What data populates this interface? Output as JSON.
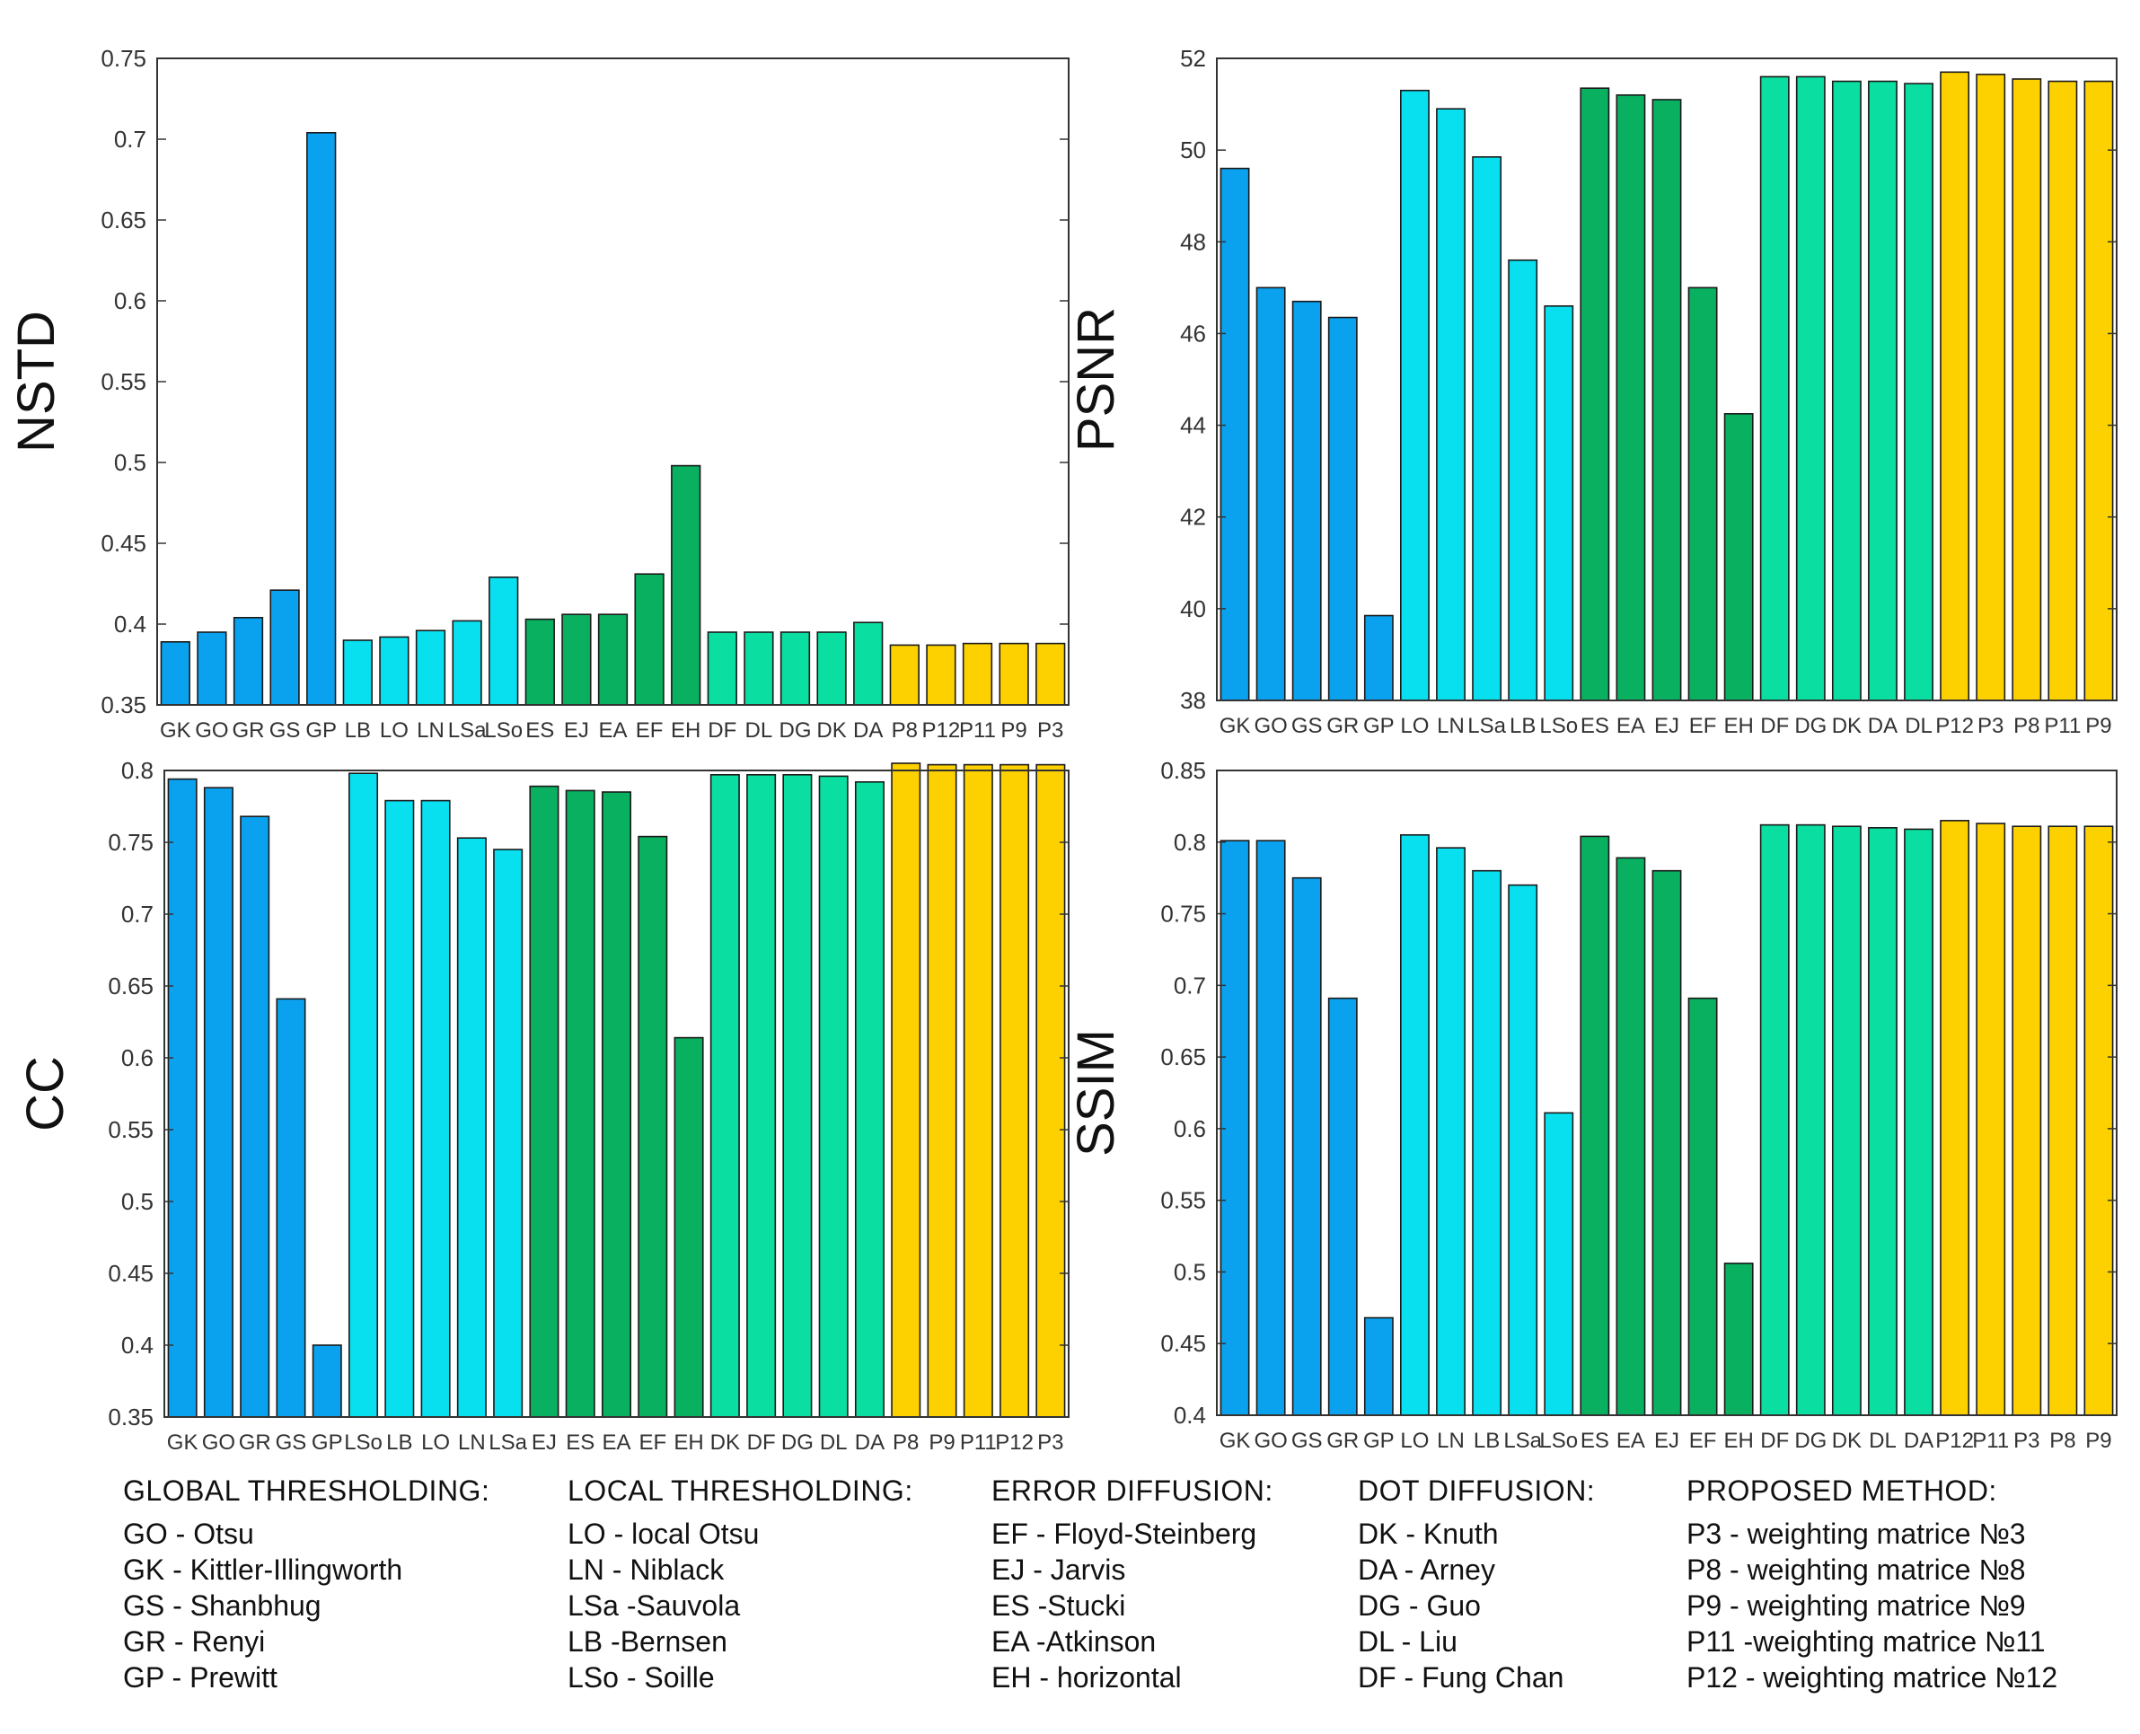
{
  "colors": {
    "global": "#0aa2ef",
    "local": "#08e0f0",
    "error": "#08b060",
    "dot": "#0adea0",
    "proposed": "#fdd000"
  },
  "chart_data": [
    {
      "type": "bar",
      "ylabel": "NSTD",
      "ylim": [
        0.35,
        0.75
      ],
      "yticks": [
        "0.35",
        "0.4",
        "0.45",
        "0.5",
        "0.55",
        "0.6",
        "0.65",
        "0.7",
        "0.75"
      ],
      "categories": [
        "GK",
        "GO",
        "GR",
        "GS",
        "GP",
        "LB",
        "LO",
        "LN",
        "LSa",
        "LSo",
        "ES",
        "EJ",
        "EA",
        "EF",
        "EH",
        "DF",
        "DL",
        "DG",
        "DK",
        "DA",
        "P8",
        "P12",
        "P11",
        "P9",
        "P3"
      ],
      "groups": [
        "global",
        "global",
        "global",
        "global",
        "global",
        "local",
        "local",
        "local",
        "local",
        "local",
        "error",
        "error",
        "error",
        "error",
        "error",
        "dot",
        "dot",
        "dot",
        "dot",
        "dot",
        "proposed",
        "proposed",
        "proposed",
        "proposed",
        "proposed"
      ],
      "values": [
        0.389,
        0.395,
        0.404,
        0.421,
        0.704,
        0.39,
        0.392,
        0.396,
        0.402,
        0.429,
        0.403,
        0.406,
        0.406,
        0.431,
        0.498,
        0.395,
        0.395,
        0.395,
        0.395,
        0.401,
        0.387,
        0.387,
        0.388,
        0.388,
        0.388
      ]
    },
    {
      "type": "bar",
      "ylabel": "PSNR",
      "ylim": [
        38,
        52
      ],
      "yticks": [
        "38",
        "40",
        "42",
        "44",
        "46",
        "48",
        "50",
        "52"
      ],
      "categories": [
        "GK",
        "GO",
        "GS",
        "GR",
        "GP",
        "LO",
        "LN",
        "LSa",
        "LB",
        "LSo",
        "ES",
        "EA",
        "EJ",
        "EF",
        "EH",
        "DF",
        "DG",
        "DK",
        "DA",
        "DL",
        "P12",
        "P3",
        "P8",
        "P11",
        "P9"
      ],
      "groups": [
        "global",
        "global",
        "global",
        "global",
        "global",
        "local",
        "local",
        "local",
        "local",
        "local",
        "error",
        "error",
        "error",
        "error",
        "error",
        "dot",
        "dot",
        "dot",
        "dot",
        "dot",
        "proposed",
        "proposed",
        "proposed",
        "proposed",
        "proposed"
      ],
      "values": [
        49.6,
        47.0,
        46.7,
        46.35,
        39.85,
        51.3,
        50.9,
        49.85,
        47.6,
        46.6,
        51.35,
        51.2,
        51.1,
        47.0,
        44.25,
        51.6,
        51.6,
        51.5,
        51.5,
        51.45,
        51.7,
        51.65,
        51.55,
        51.5,
        51.5
      ]
    },
    {
      "type": "bar",
      "ylabel": "CC",
      "ylim": [
        0.35,
        0.8
      ],
      "yticks": [
        "0.35",
        "0.4",
        "0.45",
        "0.5",
        "0.55",
        "0.6",
        "0.65",
        "0.7",
        "0.75",
        "0.8"
      ],
      "categories": [
        "GK",
        "GO",
        "GR",
        "GS",
        "GP",
        "LSo",
        "LB",
        "LO",
        "LN",
        "LSa",
        "EJ",
        "ES",
        "EA",
        "EF",
        "EH",
        "DK",
        "DF",
        "DG",
        "DL",
        "DA",
        "P8",
        "P9",
        "P11",
        "P12",
        "P3"
      ],
      "groups": [
        "global",
        "global",
        "global",
        "global",
        "global",
        "local",
        "local",
        "local",
        "local",
        "local",
        "error",
        "error",
        "error",
        "error",
        "error",
        "dot",
        "dot",
        "dot",
        "dot",
        "dot",
        "proposed",
        "proposed",
        "proposed",
        "proposed",
        "proposed"
      ],
      "values": [
        0.794,
        0.788,
        0.768,
        0.641,
        0.4,
        0.798,
        0.779,
        0.779,
        0.753,
        0.745,
        0.789,
        0.786,
        0.785,
        0.754,
        0.614,
        0.797,
        0.797,
        0.797,
        0.796,
        0.792,
        0.805,
        0.804,
        0.804,
        0.804,
        0.804
      ]
    },
    {
      "type": "bar",
      "ylabel": "SSIM",
      "ylim": [
        0.4,
        0.85
      ],
      "yticks": [
        "0.4",
        "0.45",
        "0.5",
        "0.55",
        "0.6",
        "0.65",
        "0.7",
        "0.75",
        "0.8",
        "0.85"
      ],
      "categories": [
        "GK",
        "GO",
        "GS",
        "GR",
        "GP",
        "LO",
        "LN",
        "LB",
        "LSa",
        "LSo",
        "ES",
        "EA",
        "EJ",
        "EF",
        "EH",
        "DF",
        "DG",
        "DK",
        "DL",
        "DA",
        "P12",
        "P11",
        "P3",
        "P8",
        "P9"
      ],
      "groups": [
        "global",
        "global",
        "global",
        "global",
        "global",
        "local",
        "local",
        "local",
        "local",
        "local",
        "error",
        "error",
        "error",
        "error",
        "error",
        "dot",
        "dot",
        "dot",
        "dot",
        "dot",
        "proposed",
        "proposed",
        "proposed",
        "proposed",
        "proposed"
      ],
      "values": [
        0.801,
        0.801,
        0.775,
        0.691,
        0.468,
        0.805,
        0.796,
        0.78,
        0.77,
        0.611,
        0.804,
        0.789,
        0.78,
        0.691,
        0.506,
        0.812,
        0.812,
        0.811,
        0.81,
        0.809,
        0.815,
        0.813,
        0.811,
        0.811,
        0.811
      ]
    }
  ],
  "legend": [
    {
      "header": "GLOBAL THRESHOLDING:",
      "items": [
        "GO - Otsu",
        "GK - Kittler-Illingworth",
        "GS - Shanbhug",
        "GR - Renyi",
        "GP - Prewitt"
      ]
    },
    {
      "header": "LOCAL THRESHOLDING:",
      "items": [
        "LO - local Otsu",
        "LN - Niblack",
        "LSa -Sauvola",
        "LB -Bernsen",
        "LSo - Soille"
      ]
    },
    {
      "header": "ERROR DIFFUSION:",
      "items": [
        "EF - Floyd-Steinberg",
        "EJ - Jarvis",
        "ES -Stucki",
        "EA -Atkinson",
        "EH - horizontal"
      ]
    },
    {
      "header": "DOT DIFFUSION:",
      "items": [
        "DK - Knuth",
        "DA - Arney",
        "DG - Guo",
        "DL - Liu",
        "DF - Fung Chan"
      ]
    },
    {
      "header": "PROPOSED METHOD:",
      "items": [
        "P3 - weighting matrice №3",
        "P8 - weighting matrice №8",
        "P9 - weighting matrice №9",
        "P11 -weighting matrice №11",
        "P12 - weighting matrice №12"
      ]
    }
  ]
}
